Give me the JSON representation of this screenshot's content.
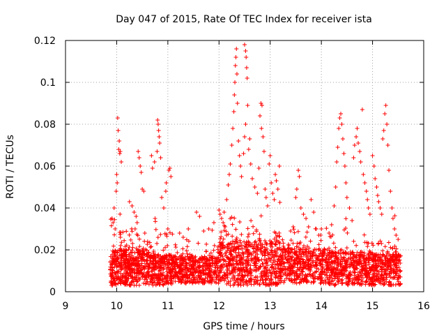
{
  "chart_data": {
    "type": "scatter",
    "title": "Day 047 of 2015, Rate Of TEC Index for receiver ista",
    "xlabel": "GPS time / hours",
    "ylabel": "ROTI / TECUs",
    "xlim": [
      9,
      16
    ],
    "ylim": [
      0,
      0.12
    ],
    "x_ticks": [
      {
        "value": 9,
        "label": "9"
      },
      {
        "value": 10,
        "label": "10"
      },
      {
        "value": 11,
        "label": "11"
      },
      {
        "value": 12,
        "label": "12"
      },
      {
        "value": 13,
        "label": "13"
      },
      {
        "value": 14,
        "label": "14"
      },
      {
        "value": 15,
        "label": "15"
      },
      {
        "value": 16,
        "label": "16"
      }
    ],
    "y_ticks": [
      {
        "value": 0,
        "label": "0"
      },
      {
        "value": 0.02,
        "label": "0.02"
      },
      {
        "value": 0.04,
        "label": "0.04"
      },
      {
        "value": 0.06,
        "label": "0.06"
      },
      {
        "value": 0.08,
        "label": "0.08"
      },
      {
        "value": 0.1,
        "label": "0.1"
      },
      {
        "value": 0.12,
        "label": "0.12"
      }
    ],
    "grid": true,
    "marker": "+",
    "series": [
      {
        "name": "ROTI",
        "color": "#ff0000",
        "x_range": [
          9.85,
          15.55
        ],
        "points": [
          [
            10.02,
            0.083
          ],
          [
            10.03,
            0.077
          ],
          [
            10.05,
            0.072
          ],
          [
            10.07,
            0.067
          ],
          [
            10.09,
            0.062
          ],
          [
            10.0,
            0.056
          ],
          [
            9.99,
            0.048
          ],
          [
            10.01,
            0.052
          ],
          [
            9.95,
            0.04
          ],
          [
            9.91,
            0.035
          ],
          [
            9.93,
            0.033
          ],
          [
            9.97,
            0.03
          ],
          [
            10.06,
            0.066
          ],
          [
            10.04,
            0.068
          ],
          [
            10.25,
            0.043
          ],
          [
            10.3,
            0.041
          ],
          [
            10.34,
            0.038
          ],
          [
            10.38,
            0.036
          ],
          [
            10.42,
            0.067
          ],
          [
            10.44,
            0.064
          ],
          [
            10.46,
            0.06
          ],
          [
            10.48,
            0.057
          ],
          [
            10.5,
            0.049
          ],
          [
            10.53,
            0.048
          ],
          [
            10.4,
            0.033
          ],
          [
            10.36,
            0.03
          ],
          [
            10.55,
            0.028
          ],
          [
            10.8,
            0.082
          ],
          [
            10.81,
            0.08
          ],
          [
            10.82,
            0.077
          ],
          [
            10.83,
            0.074
          ],
          [
            10.84,
            0.071
          ],
          [
            10.79,
            0.067
          ],
          [
            10.86,
            0.064
          ],
          [
            10.74,
            0.062
          ],
          [
            10.7,
            0.059
          ],
          [
            10.68,
            0.065
          ],
          [
            10.88,
            0.045
          ],
          [
            10.92,
            0.04
          ],
          [
            10.97,
            0.052
          ],
          [
            10.96,
            0.048
          ],
          [
            11.02,
            0.058
          ],
          [
            11.04,
            0.059
          ],
          [
            11.06,
            0.055
          ],
          [
            10.75,
            0.035
          ],
          [
            11.0,
            0.03
          ],
          [
            11.23,
            0.028
          ],
          [
            11.3,
            0.026
          ],
          [
            11.4,
            0.03
          ],
          [
            11.56,
            0.038
          ],
          [
            11.62,
            0.036
          ],
          [
            11.7,
            0.029
          ],
          [
            11.8,
            0.03
          ],
          [
            11.9,
            0.033
          ],
          [
            12.0,
            0.039
          ],
          [
            12.02,
            0.037
          ],
          [
            12.05,
            0.035
          ],
          [
            12.08,
            0.033
          ],
          [
            12.1,
            0.038
          ],
          [
            12.12,
            0.031
          ],
          [
            12.15,
            0.044
          ],
          [
            12.18,
            0.051
          ],
          [
            12.2,
            0.056
          ],
          [
            12.22,
            0.061
          ],
          [
            12.25,
            0.07
          ],
          [
            12.27,
            0.078
          ],
          [
            12.29,
            0.086
          ],
          [
            12.3,
            0.094
          ],
          [
            12.31,
            0.1
          ],
          [
            12.32,
            0.108
          ],
          [
            12.33,
            0.112
          ],
          [
            12.34,
            0.116
          ],
          [
            12.35,
            0.104
          ],
          [
            12.36,
            0.09
          ],
          [
            12.38,
            0.072
          ],
          [
            12.4,
            0.065
          ],
          [
            12.42,
            0.06
          ],
          [
            12.44,
            0.055
          ],
          [
            12.5,
            0.118
          ],
          [
            12.52,
            0.115
          ],
          [
            12.53,
            0.112
          ],
          [
            12.54,
            0.107
          ],
          [
            12.55,
            0.102
          ],
          [
            12.56,
            0.089
          ],
          [
            12.52,
            0.08
          ],
          [
            12.5,
            0.074
          ],
          [
            12.48,
            0.066
          ],
          [
            12.58,
            0.068
          ],
          [
            12.6,
            0.073
          ],
          [
            12.62,
            0.061
          ],
          [
            12.65,
            0.054
          ],
          [
            12.7,
            0.05
          ],
          [
            12.75,
            0.047
          ],
          [
            12.78,
            0.059
          ],
          [
            12.8,
            0.084
          ],
          [
            12.82,
            0.09
          ],
          [
            12.84,
            0.089
          ],
          [
            12.83,
            0.078
          ],
          [
            12.86,
            0.074
          ],
          [
            12.88,
            0.067
          ],
          [
            12.9,
            0.049
          ],
          [
            12.92,
            0.045
          ],
          [
            12.95,
            0.041
          ],
          [
            12.98,
            0.061
          ],
          [
            13.0,
            0.065
          ],
          [
            13.02,
            0.052
          ],
          [
            13.05,
            0.047
          ],
          [
            13.08,
            0.044
          ],
          [
            13.1,
            0.056
          ],
          [
            13.12,
            0.053
          ],
          [
            13.15,
            0.049
          ],
          [
            13.18,
            0.06
          ],
          [
            13.4,
            0.029
          ],
          [
            13.45,
            0.031
          ],
          [
            13.5,
            0.045
          ],
          [
            13.52,
            0.049
          ],
          [
            13.55,
            0.058
          ],
          [
            13.57,
            0.055
          ],
          [
            13.6,
            0.04
          ],
          [
            13.65,
            0.037
          ],
          [
            13.7,
            0.035
          ],
          [
            13.75,
            0.031
          ],
          [
            13.8,
            0.044
          ],
          [
            13.85,
            0.038
          ],
          [
            13.9,
            0.03
          ],
          [
            13.95,
            0.027
          ],
          [
            14.0,
            0.03
          ],
          [
            14.15,
            0.028
          ],
          [
            14.2,
            0.032
          ],
          [
            14.25,
            0.041
          ],
          [
            14.28,
            0.05
          ],
          [
            14.3,
            0.062
          ],
          [
            14.32,
            0.069
          ],
          [
            14.34,
            0.078
          ],
          [
            14.36,
            0.083
          ],
          [
            14.38,
            0.085
          ],
          [
            14.4,
            0.08
          ],
          [
            14.42,
            0.073
          ],
          [
            14.44,
            0.066
          ],
          [
            14.46,
            0.06
          ],
          [
            14.48,
            0.052
          ],
          [
            14.5,
            0.045
          ],
          [
            14.55,
            0.04
          ],
          [
            14.6,
            0.034
          ],
          [
            14.63,
            0.064
          ],
          [
            14.65,
            0.07
          ],
          [
            14.68,
            0.074
          ],
          [
            14.7,
            0.078
          ],
          [
            14.72,
            0.071
          ],
          [
            14.75,
            0.067
          ],
          [
            14.77,
            0.062
          ],
          [
            14.8,
            0.087
          ],
          [
            14.82,
            0.056
          ],
          [
            14.85,
            0.052
          ],
          [
            14.88,
            0.048
          ],
          [
            14.9,
            0.044
          ],
          [
            14.92,
            0.04
          ],
          [
            14.95,
            0.037
          ],
          [
            15.0,
            0.065
          ],
          [
            15.03,
            0.06
          ],
          [
            15.05,
            0.054
          ],
          [
            15.08,
            0.05
          ],
          [
            15.1,
            0.046
          ],
          [
            15.12,
            0.043
          ],
          [
            15.15,
            0.04
          ],
          [
            15.18,
            0.037
          ],
          [
            15.2,
            0.073
          ],
          [
            15.22,
            0.077
          ],
          [
            15.24,
            0.085
          ],
          [
            15.26,
            0.089
          ],
          [
            15.28,
            0.08
          ],
          [
            15.3,
            0.07
          ],
          [
            15.32,
            0.058
          ],
          [
            15.35,
            0.048
          ],
          [
            15.38,
            0.04
          ],
          [
            15.4,
            0.035
          ],
          [
            15.43,
            0.03
          ],
          [
            15.46,
            0.027
          ],
          [
            15.5,
            0.025
          ]
        ],
        "density_segments": [
          {
            "from": 9.87,
            "to": 10.66,
            "count": 500,
            "base_low": 0.003,
            "base_high": 0.02,
            "spread": 0.012
          },
          {
            "from": 10.66,
            "to": 11.1,
            "count": 260,
            "base_low": 0.003,
            "base_high": 0.018,
            "spread": 0.012
          },
          {
            "from": 11.1,
            "to": 12.0,
            "count": 420,
            "base_low": 0.004,
            "base_high": 0.017,
            "spread": 0.008
          },
          {
            "from": 12.0,
            "to": 13.2,
            "count": 620,
            "base_low": 0.003,
            "base_high": 0.024,
            "spread": 0.014
          },
          {
            "from": 13.2,
            "to": 14.15,
            "count": 460,
            "base_low": 0.004,
            "base_high": 0.021,
            "spread": 0.01
          },
          {
            "from": 14.15,
            "to": 15.0,
            "count": 440,
            "base_low": 0.003,
            "base_high": 0.019,
            "spread": 0.012
          },
          {
            "from": 15.0,
            "to": 15.55,
            "count": 300,
            "base_low": 0.003,
            "base_high": 0.018,
            "spread": 0.01
          }
        ]
      }
    ]
  }
}
